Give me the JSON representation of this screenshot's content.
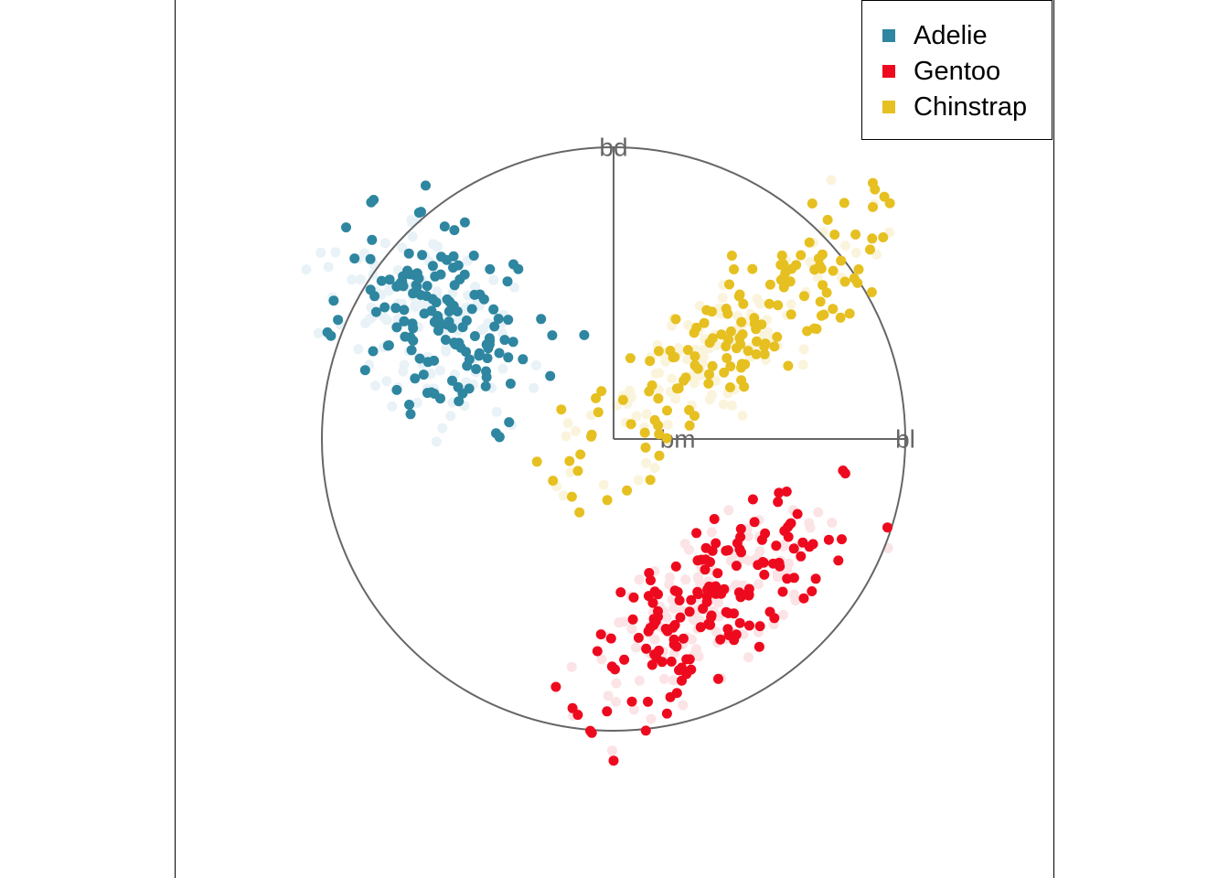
{
  "chart_data": {
    "type": "scatter",
    "title": "",
    "axes": [
      {
        "name": "bd",
        "direction_deg": 90,
        "length": 1.0
      },
      {
        "name": "bl",
        "direction_deg": 0,
        "length": 1.0
      },
      {
        "name": "bm",
        "direction_deg": 0,
        "length": 0.22
      }
    ],
    "projection_circle": {
      "radius": 1.0
    },
    "legend_position": "top-right",
    "series": [
      {
        "name": "Adelie",
        "color": "#2E86A0",
        "faded_color": "#E8F2F7",
        "center": [
          -0.6,
          0.42
        ],
        "spread": [
          0.14,
          0.2
        ],
        "tilt_deg": 45,
        "n_points": 150
      },
      {
        "name": "Gentoo",
        "color": "#EE0A1E",
        "faded_color": "#FBE3E6",
        "center": [
          0.35,
          -0.55
        ],
        "spread": [
          0.28,
          0.1
        ],
        "tilt_deg": 38,
        "n_points": 160
      },
      {
        "name": "Chinstrap",
        "color": "#E6C021",
        "faded_color": "#FBF4DC",
        "center": [
          0.38,
          0.32
        ],
        "spread": [
          0.34,
          0.1
        ],
        "tilt_deg": 40,
        "n_points": 150
      }
    ]
  },
  "legend": {
    "items": [
      {
        "label": "Adelie",
        "color": "#2E86A0"
      },
      {
        "label": "Gentoo",
        "color": "#EE0A1E"
      },
      {
        "label": "Chinstrap",
        "color": "#E6C021"
      }
    ]
  }
}
